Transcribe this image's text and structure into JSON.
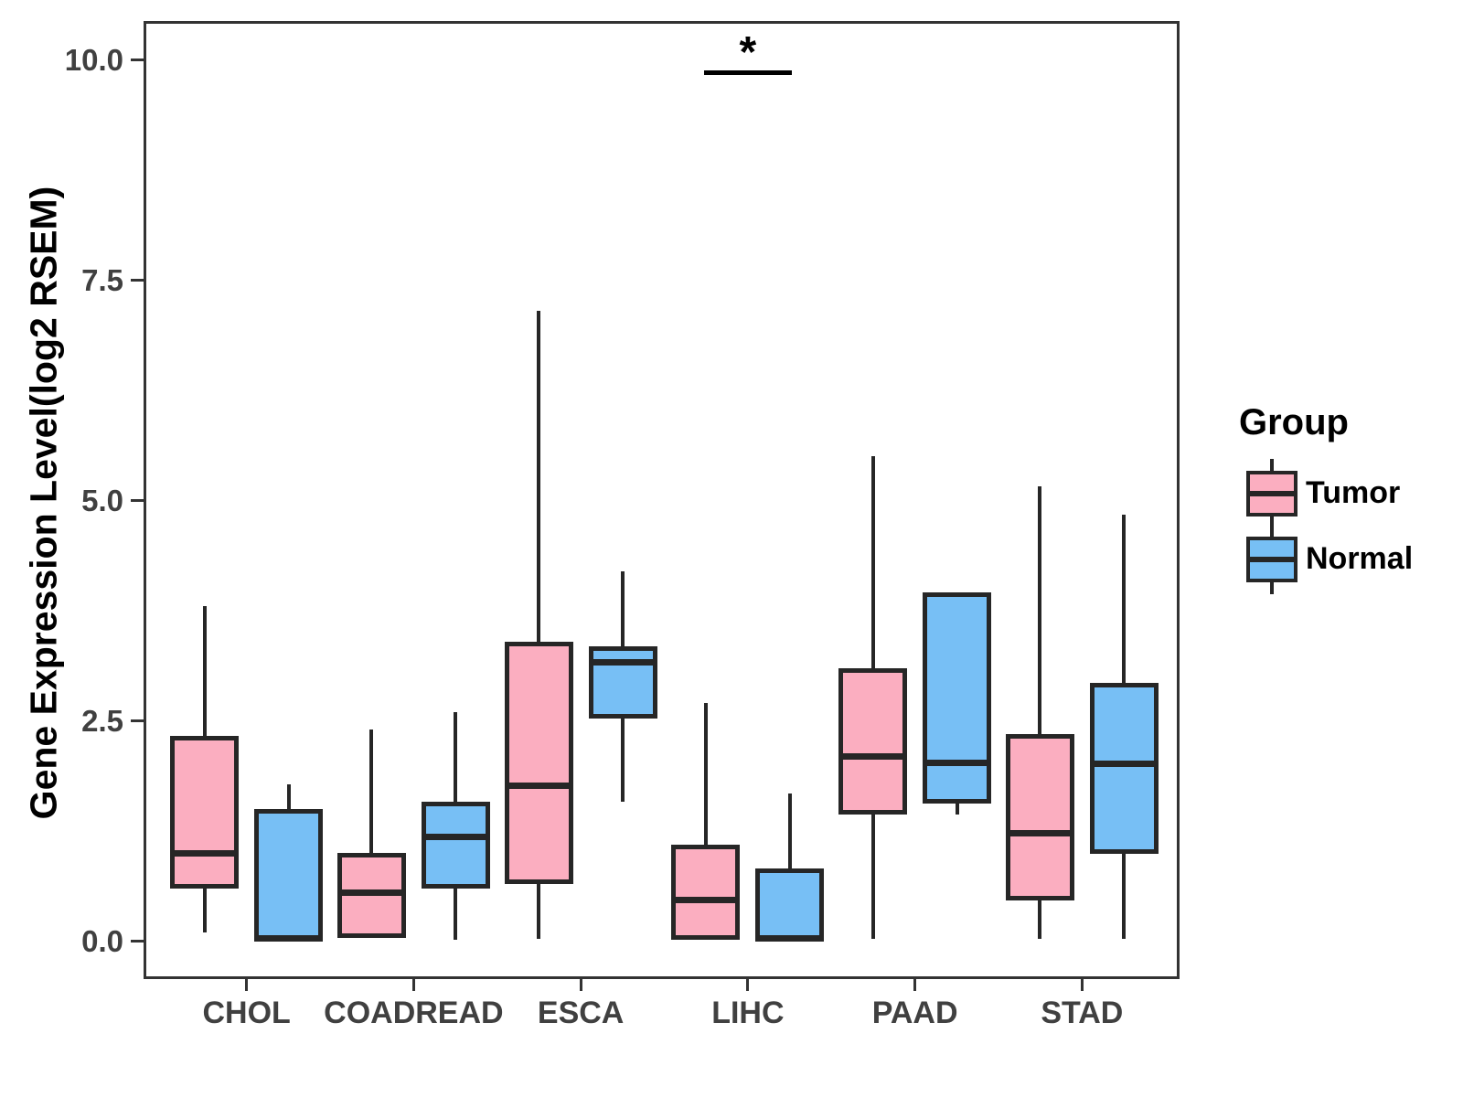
{
  "figure": {
    "background": "#FFFFFF"
  },
  "y_axis": {
    "title": "Gene Expression Level(log2 RSEM)",
    "tick_labels": [
      "10.0",
      "7.5",
      "5.0",
      "2.5",
      "0.0"
    ],
    "tick_values": [
      10,
      7.5,
      5,
      2.5,
      0
    ]
  },
  "x_axis": {
    "tick_labels": [
      "CHOL",
      "COADREAD",
      "ESCA",
      "LIHC",
      "PAAD",
      "STAD"
    ]
  },
  "legend": {
    "title": "Group",
    "items": [
      {
        "label": "Tumor",
        "color": "#FBAEC0"
      },
      {
        "label": "Normal",
        "color": "#77BFF5"
      }
    ]
  },
  "significance": {
    "symbol": "*",
    "category": "LIHC",
    "bar_value": 9.88
  },
  "style": {
    "box_border_color": "#262626",
    "panel_border_color": "#333333",
    "axis_text_color": "#404040",
    "tumor_fill": "#FBAEC0",
    "normal_fill": "#77BFF5"
  },
  "chart_data": {
    "type": "boxplot",
    "title": "",
    "xlabel": "",
    "ylabel": "Gene Expression Level(log2 RSEM)",
    "categories": [
      "CHOL",
      "COADREAD",
      "ESCA",
      "LIHC",
      "PAAD",
      "STAD"
    ],
    "ylim": [
      -0.46,
      10.41
    ],
    "yticks": [
      0,
      2.5,
      5,
      7.5,
      10
    ],
    "grid": false,
    "legend_position": "right",
    "legend_title": "Group",
    "series": [
      {
        "name": "Tumor",
        "color": "#FBAEC0",
        "boxes": [
          {
            "category": "CHOL",
            "min": 0.1,
            "q1": 0.6,
            "median": 1.0,
            "q3": 2.33,
            "max": 3.8
          },
          {
            "category": "COADREAD",
            "min": 0.04,
            "q1": 0.04,
            "median": 0.55,
            "q3": 1.0,
            "max": 2.4
          },
          {
            "category": "ESCA",
            "min": 0.03,
            "q1": 0.65,
            "median": 1.77,
            "q3": 3.4,
            "max": 7.15
          },
          {
            "category": "LIHC",
            "min": 0.02,
            "q1": 0.02,
            "median": 0.47,
            "q3": 1.1,
            "max": 2.7
          },
          {
            "category": "PAAD",
            "min": 0.03,
            "q1": 1.44,
            "median": 2.1,
            "q3": 3.1,
            "max": 5.5
          },
          {
            "category": "STAD",
            "min": 0.03,
            "q1": 0.46,
            "median": 1.23,
            "q3": 2.35,
            "max": 5.16
          }
        ]
      },
      {
        "name": "Normal",
        "color": "#77BFF5",
        "boxes": [
          {
            "category": "CHOL",
            "min": 0.0,
            "q1": 0.0,
            "median": 0.03,
            "q3": 1.5,
            "max": 1.78
          },
          {
            "category": "COADREAD",
            "min": 0.02,
            "q1": 0.6,
            "median": 1.18,
            "q3": 1.58,
            "max": 2.6
          },
          {
            "category": "ESCA",
            "min": 1.58,
            "q1": 2.53,
            "median": 3.16,
            "q3": 3.35,
            "max": 4.2
          },
          {
            "category": "LIHC",
            "min": 0.0,
            "q1": 0.0,
            "median": 0.03,
            "q3": 0.83,
            "max": 1.68
          },
          {
            "category": "PAAD",
            "min": 1.44,
            "q1": 1.56,
            "median": 2.02,
            "q3": 3.96,
            "max": 3.96
          },
          {
            "category": "STAD",
            "min": 0.03,
            "q1": 0.99,
            "median": 2.01,
            "q3": 2.93,
            "max": 4.84
          }
        ]
      }
    ],
    "annotations": [
      {
        "type": "significance",
        "symbol": "*",
        "category": "LIHC",
        "y": 9.88
      }
    ]
  }
}
